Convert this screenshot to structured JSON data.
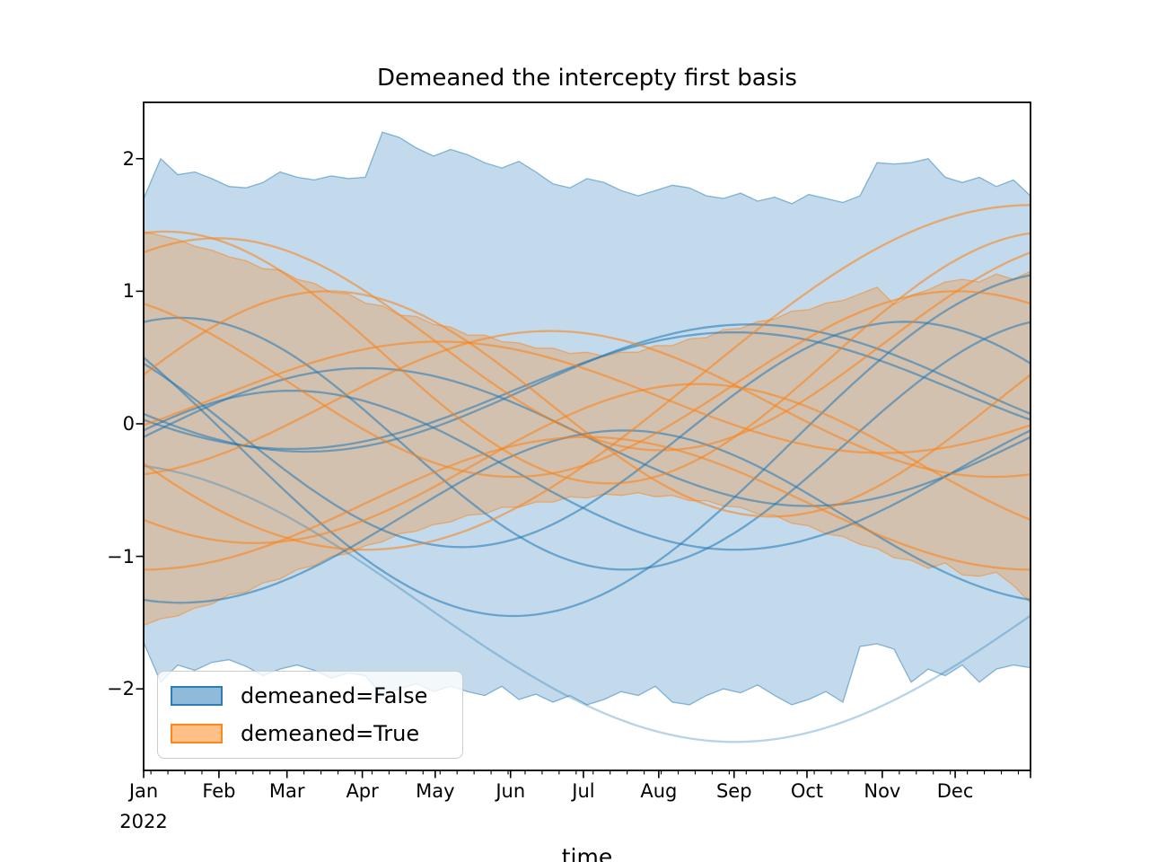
{
  "chart_data": {
    "type": "area+line",
    "title": "Demeaned the intercepty first basis",
    "xlabel": "time",
    "ylabel": "",
    "x_year_label": "2022",
    "x_tick_labels": [
      "Jan",
      "Feb",
      "Mar",
      "Apr",
      "May",
      "Jun",
      "Jul",
      "Aug",
      "Sep",
      "Oct",
      "Nov",
      "Dec"
    ],
    "x_month_day_offsets": [
      0,
      31,
      59,
      90,
      120,
      151,
      181,
      212,
      243,
      273,
      304,
      334
    ],
    "days_in_year": 365,
    "minor_tick_start_day": 3,
    "minor_tick_step_days": 7,
    "y_ticks": [
      {
        "value": 2,
        "label": "2"
      },
      {
        "value": 1,
        "label": "1"
      },
      {
        "value": 0,
        "label": "0"
      },
      {
        "value": -1,
        "label": "−1"
      },
      {
        "value": -2,
        "label": "−2"
      }
    ],
    "ylim": [
      -2.615,
      2.425
    ],
    "grid": false,
    "legend_position": "lower left",
    "legend": [
      {
        "label": "demeaned=False",
        "color": "#1f77b4"
      },
      {
        "label": "demeaned=True",
        "color": "#ff7f0e"
      }
    ],
    "bands": [
      {
        "name": "demeaned=False envelope",
        "series": 0,
        "upper": [
          1.7,
          2.0,
          1.88,
          1.9,
          1.85,
          1.79,
          1.78,
          1.82,
          1.9,
          1.86,
          1.84,
          1.87,
          1.85,
          1.86,
          2.2,
          2.16,
          2.08,
          2.02,
          2.07,
          2.03,
          1.97,
          1.93,
          1.98,
          1.9,
          1.81,
          1.78,
          1.85,
          1.82,
          1.76,
          1.72,
          1.76,
          1.8,
          1.78,
          1.72,
          1.7,
          1.74,
          1.68,
          1.71,
          1.66,
          1.73,
          1.7,
          1.67,
          1.72,
          1.97,
          1.96,
          1.97,
          2.0,
          1.86,
          1.82,
          1.86,
          1.79,
          1.84,
          1.72
        ],
        "lower": [
          -1.65,
          -1.95,
          -1.82,
          -1.86,
          -1.8,
          -1.78,
          -1.83,
          -1.9,
          -1.85,
          -1.82,
          -1.86,
          -1.92,
          -1.88,
          -1.9,
          -2.05,
          -2.0,
          -1.96,
          -2.02,
          -1.98,
          -2.02,
          -2.05,
          -1.98,
          -2.08,
          -2.04,
          -2.1,
          -2.05,
          -2.12,
          -2.08,
          -2.02,
          -2.05,
          -1.98,
          -2.1,
          -2.12,
          -2.05,
          -2.0,
          -2.03,
          -1.97,
          -2.05,
          -2.12,
          -2.08,
          -2.02,
          -2.1,
          -1.68,
          -1.66,
          -1.7,
          -1.95,
          -1.85,
          -1.9,
          -1.82,
          -1.95,
          -1.85,
          -1.82,
          -1.84
        ]
      },
      {
        "name": "demeaned=True envelope",
        "series": 1,
        "upper": [
          1.45,
          1.42,
          1.39,
          1.34,
          1.31,
          1.26,
          1.23,
          1.17,
          1.16,
          1.09,
          1.06,
          0.99,
          0.98,
          0.91,
          0.89,
          0.82,
          0.81,
          0.75,
          0.73,
          0.67,
          0.67,
          0.62,
          0.61,
          0.57,
          0.57,
          0.53,
          0.54,
          0.51,
          0.54,
          0.54,
          0.59,
          0.59,
          0.64,
          0.65,
          0.71,
          0.72,
          0.77,
          0.79,
          0.85,
          0.86,
          0.91,
          0.93,
          0.98,
          1.03,
          0.9,
          0.97,
          1.01,
          1.07,
          1.09,
          1.07,
          1.13,
          1.09,
          1.15
        ],
        "lower": [
          -1.52,
          -1.47,
          -1.45,
          -1.39,
          -1.36,
          -1.29,
          -1.27,
          -1.2,
          -1.17,
          -1.1,
          -1.07,
          -1.0,
          -0.98,
          -0.92,
          -0.89,
          -0.83,
          -0.81,
          -0.76,
          -0.74,
          -0.69,
          -0.68,
          -0.63,
          -0.63,
          -0.59,
          -0.59,
          -0.55,
          -0.56,
          -0.53,
          -0.54,
          -0.52,
          -0.55,
          -0.54,
          -0.58,
          -0.58,
          -0.62,
          -0.63,
          -0.68,
          -0.69,
          -0.75,
          -0.77,
          -0.83,
          -0.85,
          -0.91,
          -0.94,
          -1.01,
          -1.03,
          -1.09,
          -1.05,
          -1.14,
          -1.15,
          -1.12,
          -1.22,
          -1.35
        ]
      }
    ],
    "lines": [
      {
        "series": 0,
        "amp": 0.85,
        "period": 12,
        "phase": 10.3,
        "offset": -0.08
      },
      {
        "series": 0,
        "amp": 0.48,
        "period": 12,
        "phase": 8.2,
        "offset": 0.27
      },
      {
        "series": 0,
        "amp": 0.44,
        "period": 12,
        "phase": 8.0,
        "offset": 0.25
      },
      {
        "series": 0,
        "amp": 1.3,
        "period": 15,
        "phase": 12.5,
        "offset": -0.15
      },
      {
        "series": 0,
        "amp": 0.95,
        "period": 12,
        "phase": 0.5,
        "offset": -0.15
      },
      {
        "series": 0,
        "amp": 0.52,
        "period": 12,
        "phase": 3.0,
        "offset": -0.1
      },
      {
        "series": 0,
        "amp": 0.65,
        "period": 12,
        "phase": 6.5,
        "offset": -0.7
      },
      {
        "series": 0,
        "amp": 0.6,
        "period": 12,
        "phase": 2.0,
        "offset": -0.35
      },
      {
        "series": 0,
        "amp": 1.05,
        "period": 17,
        "phase": -0.5,
        "offset": -1.35,
        "light": true
      },
      {
        "series": 1,
        "amp": 0.95,
        "period": 12,
        "phase": 0.3,
        "offset": 0.5
      },
      {
        "series": 1,
        "amp": 0.8,
        "period": 12,
        "phase": 1.0,
        "offset": 0.6
      },
      {
        "series": 1,
        "amp": 0.7,
        "period": 12,
        "phase": 11.0,
        "offset": 0.3
      },
      {
        "series": 1,
        "amp": 0.55,
        "period": 12,
        "phase": 5.5,
        "offset": 0.15
      },
      {
        "series": 1,
        "amp": 0.42,
        "period": 12,
        "phase": 4.0,
        "offset": 0.2
      },
      {
        "series": 1,
        "amp": 0.6,
        "period": 12,
        "phase": 7.5,
        "offset": -0.3
      },
      {
        "series": 1,
        "amp": 0.5,
        "period": 12,
        "phase": 6.0,
        "offset": -0.6
      },
      {
        "series": 1,
        "amp": -1.3,
        "period": 18,
        "phase": 3.0,
        "offset": 0.35
      },
      {
        "series": 1,
        "amp": 0.85,
        "period": 12,
        "phase": 2.5,
        "offset": 0.15
      }
    ],
    "style": {
      "band_fill_alpha": 0.27,
      "band_edge_alpha": 0.5,
      "line_alpha": 0.55,
      "light_line_alpha": 0.32,
      "line_width": 2.3,
      "axis_color": "#000000",
      "background": "#ffffff"
    }
  }
}
